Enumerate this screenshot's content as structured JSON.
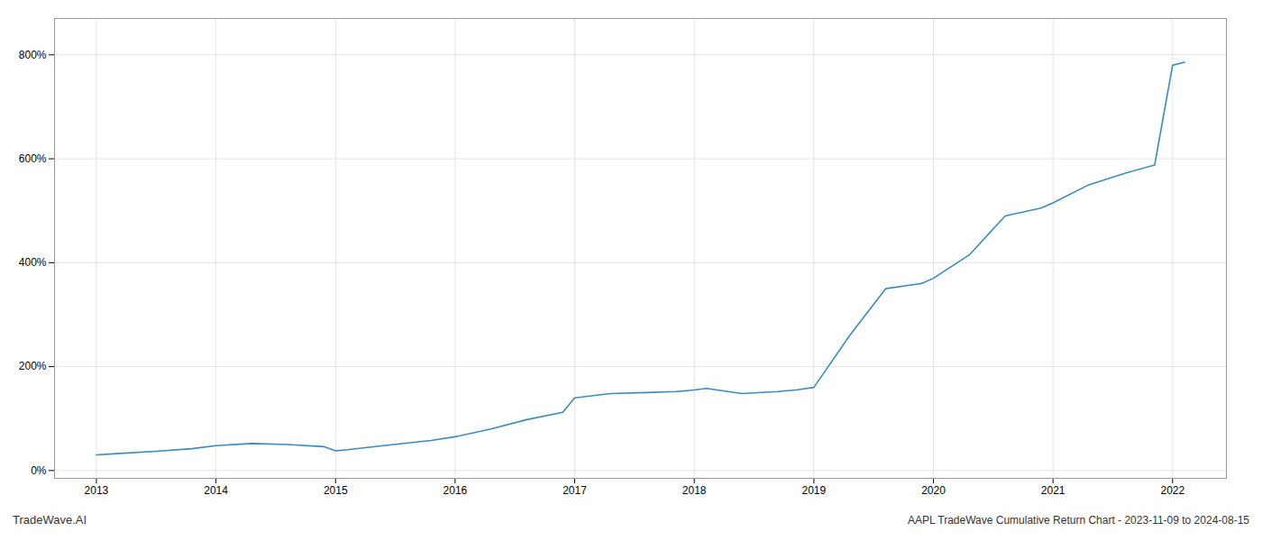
{
  "chart_data": {
    "type": "line",
    "title": "AAPL TradeWave Cumulative Return Chart - 2023-11-09 to 2024-08-15",
    "annotations": [
      "TradeWave.AI"
    ],
    "color": "#3a8bbf",
    "x": [
      2013.0,
      2013.2,
      2013.5,
      2013.8,
      2014.0,
      2014.3,
      2014.6,
      2014.9,
      2015.0,
      2015.1,
      2015.4,
      2015.8,
      2016.0,
      2016.3,
      2016.6,
      2016.9,
      2017.0,
      2017.3,
      2017.6,
      2017.85,
      2018.0,
      2018.1,
      2018.4,
      2018.7,
      2018.85,
      2019.0,
      2019.3,
      2019.6,
      2019.9,
      2020.0,
      2020.3,
      2020.6,
      2020.9,
      2021.0,
      2021.3,
      2021.6,
      2021.85,
      2022.0,
      2022.1
    ],
    "values": [
      30,
      33,
      37,
      42,
      48,
      52,
      50,
      46,
      38,
      40,
      48,
      58,
      65,
      80,
      98,
      112,
      140,
      148,
      150,
      152,
      155,
      158,
      148,
      152,
      155,
      160,
      260,
      350,
      360,
      370,
      415,
      490,
      505,
      515,
      550,
      572,
      588,
      780,
      786
    ],
    "xlim": [
      2012.65,
      2022.45
    ],
    "xticks": [
      2013,
      2014,
      2015,
      2016,
      2017,
      2018,
      2019,
      2020,
      2021,
      2022
    ],
    "ylim": [
      -15,
      870
    ],
    "yticks": [
      {
        "value": 0,
        "label": "0%"
      },
      {
        "value": 200,
        "label": "200%"
      },
      {
        "value": 400,
        "label": "400%"
      },
      {
        "value": 600,
        "label": "600%"
      },
      {
        "value": 800,
        "label": "800%"
      }
    ],
    "grid": true
  }
}
